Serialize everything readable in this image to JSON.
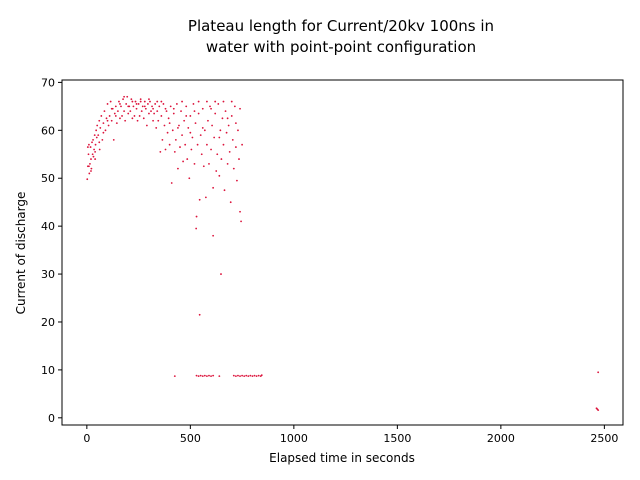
{
  "chart_data": {
    "type": "scatter",
    "title_lines": [
      "Plateau length for Current/20kv 100ns in",
      "water with point-point configuration"
    ],
    "xlabel": "Elapsed time in seconds",
    "ylabel": "Current of discharge",
    "xlim": [
      -120,
      2590
    ],
    "ylim": [
      -1.5,
      70.5
    ],
    "x_ticks": [
      0,
      500,
      1000,
      1500,
      2000,
      2500
    ],
    "y_ticks": [
      0,
      10,
      20,
      30,
      40,
      50,
      60,
      70
    ],
    "grid": false,
    "legend": "none",
    "marker_color": "#dc143c",
    "series": [
      {
        "points": [
          [
            2,
            49.8
          ],
          [
            5,
            52.5
          ],
          [
            8,
            55.0
          ],
          [
            10,
            57.0
          ],
          [
            12,
            51.0
          ],
          [
            15,
            53.0
          ],
          [
            18,
            56.5
          ],
          [
            20,
            54.0
          ],
          [
            22,
            52.0
          ],
          [
            25,
            57.5
          ],
          [
            28,
            55.0
          ],
          [
            30,
            58.0
          ],
          [
            32,
            54.5
          ],
          [
            35,
            56.0
          ],
          [
            38,
            59.0
          ],
          [
            40,
            55.5
          ],
          [
            42,
            57.0
          ],
          [
            45,
            60.0
          ],
          [
            48,
            58.5
          ],
          [
            50,
            61.0
          ],
          [
            55,
            59.0
          ],
          [
            60,
            62.0
          ],
          [
            62,
            56.0
          ],
          [
            65,
            60.5
          ],
          [
            70,
            63.0
          ],
          [
            75,
            58.0
          ],
          [
            80,
            61.5
          ],
          [
            85,
            64.0
          ],
          [
            90,
            60.0
          ],
          [
            95,
            62.5
          ],
          [
            100,
            65.5
          ],
          [
            105,
            61.0
          ],
          [
            110,
            63.0
          ],
          [
            115,
            66.0
          ],
          [
            120,
            62.0
          ],
          [
            125,
            64.5
          ],
          [
            130,
            58.0
          ],
          [
            135,
            63.5
          ],
          [
            140,
            65.0
          ],
          [
            145,
            61.5
          ],
          [
            150,
            64.0
          ],
          [
            155,
            66.0
          ],
          [
            160,
            62.5
          ],
          [
            165,
            65.0
          ],
          [
            170,
            63.0
          ],
          [
            175,
            66.5
          ],
          [
            180,
            64.0
          ],
          [
            185,
            62.0
          ],
          [
            190,
            65.5
          ],
          [
            195,
            67.0
          ],
          [
            200,
            63.5
          ],
          [
            205,
            65.0
          ],
          [
            210,
            64.0
          ],
          [
            215,
            66.5
          ],
          [
            220,
            62.5
          ],
          [
            225,
            65.0
          ],
          [
            230,
            63.0
          ],
          [
            235,
            66.0
          ],
          [
            240,
            64.5
          ],
          [
            245,
            62.0
          ],
          [
            250,
            65.5
          ],
          [
            255,
            63.0
          ],
          [
            260,
            66.0
          ],
          [
            265,
            64.0
          ],
          [
            270,
            65.0
          ],
          [
            275,
            62.5
          ],
          [
            280,
            66.0
          ],
          [
            285,
            64.5
          ],
          [
            290,
            61.0
          ],
          [
            295,
            65.5
          ],
          [
            300,
            63.5
          ],
          [
            305,
            66.0
          ],
          [
            310,
            64.0
          ],
          [
            315,
            65.0
          ],
          [
            320,
            62.0
          ],
          [
            325,
            63.5
          ],
          [
            330,
            65.5
          ],
          [
            335,
            60.5
          ],
          [
            340,
            64.0
          ],
          [
            345,
            62.0
          ],
          [
            350,
            65.0
          ],
          [
            355,
            55.5
          ],
          [
            360,
            63.0
          ],
          [
            365,
            58.0
          ],
          [
            370,
            65.5
          ],
          [
            375,
            61.0
          ],
          [
            380,
            56.0
          ],
          [
            385,
            64.0
          ],
          [
            390,
            59.5
          ],
          [
            395,
            62.5
          ],
          [
            400,
            57.0
          ],
          [
            405,
            65.0
          ],
          [
            410,
            49.0
          ],
          [
            415,
            60.0
          ],
          [
            420,
            63.5
          ],
          [
            425,
            55.5
          ],
          [
            430,
            58.0
          ],
          [
            435,
            65.5
          ],
          [
            440,
            52.0
          ],
          [
            445,
            61.0
          ],
          [
            450,
            56.5
          ],
          [
            455,
            64.0
          ],
          [
            460,
            59.0
          ],
          [
            465,
            53.5
          ],
          [
            470,
            62.0
          ],
          [
            475,
            57.0
          ],
          [
            480,
            65.0
          ],
          [
            485,
            54.0
          ],
          [
            490,
            60.5
          ],
          [
            495,
            50.0
          ],
          [
            500,
            63.0
          ],
          [
            505,
            56.0
          ],
          [
            510,
            58.5
          ],
          [
            515,
            65.5
          ],
          [
            520,
            53.0
          ],
          [
            525,
            61.5
          ],
          [
            530,
            42.0
          ],
          [
            535,
            57.0
          ],
          [
            540,
            63.5
          ],
          [
            545,
            45.5
          ],
          [
            550,
            59.0
          ],
          [
            555,
            55.0
          ],
          [
            560,
            64.5
          ],
          [
            565,
            52.5
          ],
          [
            570,
            60.0
          ],
          [
            575,
            46.0
          ],
          [
            580,
            57.0
          ],
          [
            585,
            62.0
          ],
          [
            590,
            53.0
          ],
          [
            595,
            65.0
          ],
          [
            600,
            56.0
          ],
          [
            605,
            61.0
          ],
          [
            610,
            48.0
          ],
          [
            615,
            58.5
          ],
          [
            620,
            63.5
          ],
          [
            625,
            51.5
          ],
          [
            630,
            55.0
          ],
          [
            635,
            65.5
          ],
          [
            640,
            50.5
          ],
          [
            645,
            60.0
          ],
          [
            650,
            54.0
          ],
          [
            655,
            62.5
          ],
          [
            660,
            57.0
          ],
          [
            665,
            47.5
          ],
          [
            670,
            64.0
          ],
          [
            675,
            59.5
          ],
          [
            680,
            53.0
          ],
          [
            685,
            61.0
          ],
          [
            690,
            55.5
          ],
          [
            695,
            45.0
          ],
          [
            700,
            63.0
          ],
          [
            705,
            58.0
          ],
          [
            710,
            52.0
          ],
          [
            715,
            65.0
          ],
          [
            720,
            56.5
          ],
          [
            725,
            49.5
          ],
          [
            730,
            60.0
          ],
          [
            735,
            54.0
          ],
          [
            740,
            43.0
          ],
          [
            745,
            41.0
          ],
          [
            750,
            57.0
          ],
          [
            740,
            64.5
          ],
          [
            720,
            61.5
          ],
          [
            700,
            66.0
          ],
          [
            680,
            62.5
          ],
          [
            660,
            66.0
          ],
          [
            640,
            58.5
          ],
          [
            620,
            66.0
          ],
          [
            600,
            64.5
          ],
          [
            580,
            66.0
          ],
          [
            560,
            60.5
          ],
          [
            540,
            66.0
          ],
          [
            520,
            64.0
          ],
          [
            500,
            59.5
          ],
          [
            480,
            63.0
          ],
          [
            460,
            66.0
          ],
          [
            440,
            60.5
          ],
          [
            420,
            64.5
          ],
          [
            400,
            61.5
          ],
          [
            380,
            64.5
          ],
          [
            360,
            66.0
          ],
          [
            340,
            66.0
          ],
          [
            320,
            64.5
          ],
          [
            300,
            66.5
          ],
          [
            280,
            65.0
          ],
          [
            260,
            66.5
          ],
          [
            240,
            65.5
          ],
          [
            220,
            66.0
          ],
          [
            200,
            65.0
          ],
          [
            180,
            67.0
          ],
          [
            160,
            65.5
          ],
          [
            140,
            63.0
          ],
          [
            120,
            64.5
          ],
          [
            100,
            62.0
          ],
          [
            80,
            59.5
          ],
          [
            60,
            57.5
          ],
          [
            40,
            54.0
          ],
          [
            20,
            51.5
          ],
          [
            10,
            52.5
          ],
          [
            5,
            56.5
          ],
          [
            528,
            39.5
          ],
          [
            610,
            38.0
          ],
          [
            648,
            30.0
          ],
          [
            545,
            21.5
          ],
          [
            425,
            8.7
          ],
          [
            530,
            8.8
          ],
          [
            540,
            8.7
          ],
          [
            550,
            8.8
          ],
          [
            560,
            8.7
          ],
          [
            570,
            8.8
          ],
          [
            580,
            8.7
          ],
          [
            590,
            8.8
          ],
          [
            600,
            8.7
          ],
          [
            610,
            8.8
          ],
          [
            640,
            8.7
          ],
          [
            710,
            8.8
          ],
          [
            720,
            8.7
          ],
          [
            730,
            8.8
          ],
          [
            740,
            8.7
          ],
          [
            750,
            8.8
          ],
          [
            760,
            8.7
          ],
          [
            770,
            8.8
          ],
          [
            780,
            8.7
          ],
          [
            790,
            8.8
          ],
          [
            800,
            8.7
          ],
          [
            810,
            8.8
          ],
          [
            820,
            8.7
          ],
          [
            830,
            8.8
          ],
          [
            840,
            8.7
          ],
          [
            845,
            8.9
          ],
          [
            2470,
            9.5
          ],
          [
            2462,
            2.0
          ],
          [
            2466,
            1.8
          ],
          [
            2470,
            1.6
          ]
        ]
      }
    ]
  }
}
